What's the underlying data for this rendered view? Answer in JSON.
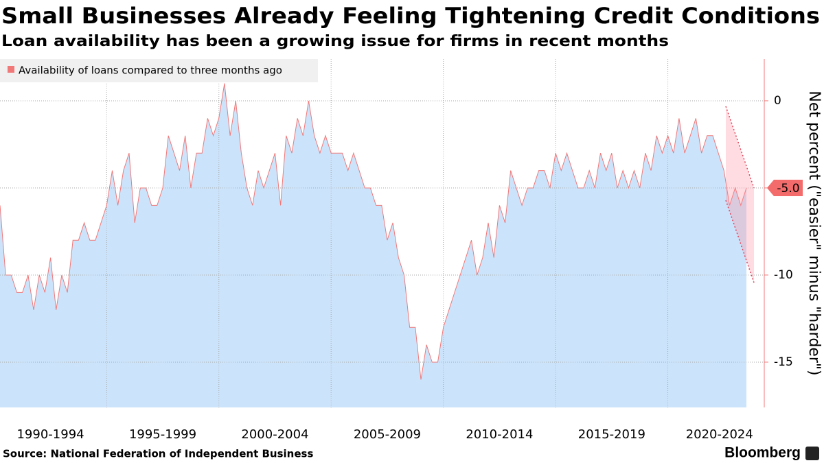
{
  "chart_data": {
    "type": "area",
    "title": "Small Businesses Already Feeling Tightening Credit Conditions",
    "subtitle": "Loan availability has been a growing issue for firms in recent months",
    "y_axis_label": "Net percent (\"easier\" minus \"harder\")",
    "source": "Source: National Federation of Independent Business",
    "brand": "Bloomberg",
    "legend_position": "top-left",
    "grid": true,
    "xlim": [
      1990.25,
      2023.5
    ],
    "xgrid": [
      1995,
      2000,
      2005,
      2010,
      2015,
      2020
    ],
    "xticks": [
      {
        "value": 1992.5,
        "label": "1990-1994"
      },
      {
        "value": 1997.5,
        "label": "1995-1999"
      },
      {
        "value": 2002.5,
        "label": "2000-2004"
      },
      {
        "value": 2007.5,
        "label": "2005-2009"
      },
      {
        "value": 2012.5,
        "label": "2010-2014"
      },
      {
        "value": 2017.5,
        "label": "2015-2019"
      },
      {
        "value": 2022.3,
        "label": "2020-2024"
      }
    ],
    "ylim": [
      -17.6,
      2.4
    ],
    "yticks": [
      0,
      -5,
      -10,
      -15
    ],
    "x": [
      1990.25,
      1990.5,
      1990.75,
      1991,
      1991.25,
      1991.5,
      1991.75,
      1992,
      1992.25,
      1992.5,
      1992.75,
      1993,
      1993.25,
      1993.5,
      1993.75,
      1994,
      1994.25,
      1994.5,
      1994.75,
      1995,
      1995.25,
      1995.5,
      1995.75,
      1996,
      1996.25,
      1996.5,
      1996.75,
      1997,
      1997.25,
      1997.5,
      1997.75,
      1998,
      1998.25,
      1998.5,
      1998.75,
      1999,
      1999.25,
      1999.5,
      1999.75,
      2000,
      2000.25,
      2000.5,
      2000.75,
      2001,
      2001.25,
      2001.5,
      2001.75,
      2002,
      2002.25,
      2002.5,
      2002.75,
      2003,
      2003.25,
      2003.5,
      2003.75,
      2004,
      2004.25,
      2004.5,
      2004.75,
      2005,
      2005.25,
      2005.5,
      2005.75,
      2006,
      2006.25,
      2006.5,
      2006.75,
      2007,
      2007.25,
      2007.5,
      2007.75,
      2008,
      2008.25,
      2008.5,
      2008.75,
      2009,
      2009.25,
      2009.5,
      2009.75,
      2010,
      2010.25,
      2010.5,
      2010.75,
      2011,
      2011.25,
      2011.5,
      2011.75,
      2012,
      2012.25,
      2012.5,
      2012.75,
      2013,
      2013.25,
      2013.5,
      2013.75,
      2014,
      2014.25,
      2014.5,
      2014.75,
      2015,
      2015.25,
      2015.5,
      2015.75,
      2016,
      2016.25,
      2016.5,
      2016.75,
      2017,
      2017.25,
      2017.5,
      2017.75,
      2018,
      2018.25,
      2018.5,
      2018.75,
      2019,
      2019.25,
      2019.5,
      2019.75,
      2020,
      2020.25,
      2020.5,
      2020.75,
      2021,
      2021.25,
      2021.5,
      2021.75,
      2022,
      2022.25,
      2022.5,
      2022.75,
      2023,
      2023.25,
      2023.5
    ],
    "series": [
      {
        "name": "Availability of loans compared to three months ago",
        "color": "#f07878",
        "fill": "#cce4fb",
        "values": [
          -6,
          -10,
          -10,
          -11,
          -11,
          -10,
          -12,
          -10,
          -11,
          -9,
          -12,
          -10,
          -11,
          -8,
          -8,
          -7,
          -8,
          -8,
          -7,
          -6,
          -4,
          -6,
          -4,
          -3,
          -7,
          -5,
          -5,
          -6,
          -6,
          -5,
          -2,
          -3,
          -4,
          -2,
          -5,
          -3,
          -3,
          -1,
          -2,
          -1,
          1,
          -2,
          0,
          -3,
          -5,
          -6,
          -4,
          -5,
          -4,
          -3,
          -6,
          -2,
          -3,
          -1,
          -2,
          0,
          -2,
          -3,
          -2,
          -3,
          -3,
          -3,
          -4,
          -3,
          -4,
          -5,
          -5,
          -6,
          -6,
          -8,
          -7,
          -9,
          -10,
          -13,
          -13,
          -16,
          -14,
          -15,
          -15,
          -13,
          -12,
          -11,
          -10,
          -9,
          -8,
          -10,
          -9,
          -7,
          -9,
          -6,
          -7,
          -4,
          -5,
          -6,
          -5,
          -5,
          -4,
          -4,
          -5,
          -3,
          -4,
          -3,
          -4,
          -5,
          -5,
          -4,
          -5,
          -3,
          -4,
          -3,
          -5,
          -4,
          -5,
          -4,
          -5,
          -3,
          -4,
          -2,
          -3,
          -2,
          -3,
          -1,
          -3,
          -2,
          -1,
          -3,
          -2,
          -2,
          -3,
          -4,
          -6,
          -5,
          -6,
          -5
        ],
        "value_labels": [
          null,
          null,
          null,
          null,
          null,
          null,
          null,
          null,
          null,
          null,
          null,
          null,
          null,
          null,
          null,
          null,
          null,
          null,
          null,
          null,
          null,
          null,
          null,
          null,
          null,
          null,
          null,
          null,
          null,
          null,
          null,
          null,
          null,
          null,
          null,
          null,
          null,
          null,
          null,
          null,
          null,
          null,
          null,
          null,
          null,
          null,
          null,
          null,
          null,
          null,
          null,
          null,
          null,
          null,
          null,
          null,
          null,
          null,
          null,
          null,
          null,
          null,
          null,
          null,
          null,
          null,
          null,
          null,
          null,
          null,
          null,
          null,
          null,
          null,
          null,
          null,
          null,
          null,
          null,
          null,
          null,
          null,
          null,
          null,
          null,
          null,
          null,
          null,
          null,
          null,
          null,
          null,
          null,
          null,
          null,
          null,
          null,
          null,
          null,
          null,
          null,
          null,
          null,
          null,
          null,
          null,
          null,
          null,
          null,
          null,
          null,
          null,
          null,
          null,
          null,
          null,
          null,
          null,
          null,
          null,
          null,
          null,
          null,
          null,
          null,
          null,
          null,
          null,
          null,
          null,
          null,
          null,
          null,
          "-5.0"
        ]
      }
    ]
  }
}
